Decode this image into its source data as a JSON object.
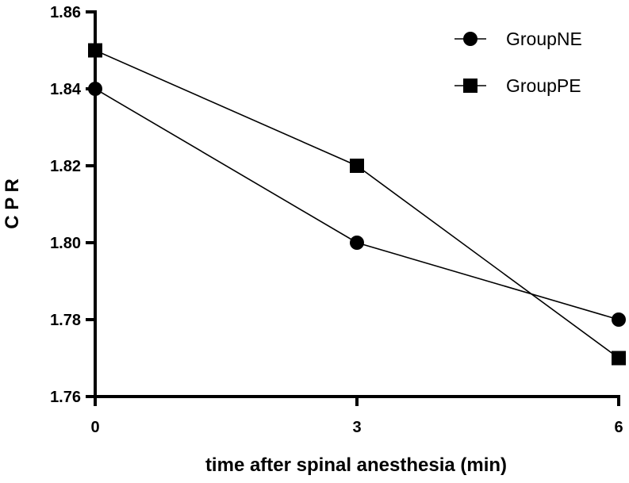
{
  "chart_data": {
    "type": "line",
    "title": "",
    "xlabel": "time after spinal anesthesia (min)",
    "ylabel": "C P R",
    "x": [
      0,
      3,
      6
    ],
    "xlim": [
      0,
      6
    ],
    "ylim": [
      1.76,
      1.86
    ],
    "x_ticks": [
      0,
      3,
      6
    ],
    "x_tick_labels": [
      "0",
      "3",
      "6"
    ],
    "y_ticks": [
      1.76,
      1.78,
      1.8,
      1.82,
      1.84,
      1.86
    ],
    "y_tick_labels": [
      "1.76",
      "1.78",
      "1.80",
      "1.82",
      "1.84",
      "1.86"
    ],
    "grid": false,
    "legend_position": "top-right",
    "series": [
      {
        "name": "GroupNE",
        "marker": "circle",
        "color": "#000000",
        "values": [
          1.84,
          1.8,
          1.78
        ]
      },
      {
        "name": "GroupPE",
        "marker": "square",
        "color": "#000000",
        "values": [
          1.85,
          1.82,
          1.77
        ]
      }
    ]
  }
}
